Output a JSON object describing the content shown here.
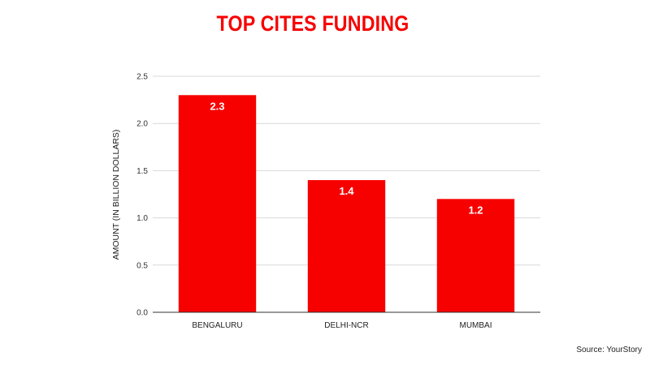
{
  "chart_data": {
    "type": "bar",
    "title": "TOP CITES FUNDING",
    "xlabel": "",
    "ylabel": "AMOUNT (IN BILLION DOLLARS)",
    "categories": [
      "BENGALURU",
      "DELHI-NCR",
      "MUMBAI"
    ],
    "values": [
      2.3,
      1.4,
      1.2
    ],
    "data_labels": [
      "2.3",
      "1.4",
      "1.2"
    ],
    "ylim": [
      0,
      2.5
    ],
    "yticks": [
      "0.0",
      "0.5",
      "1.0",
      "1.5",
      "2.0",
      "2.5"
    ],
    "grid": true,
    "legend": "none",
    "colors": {
      "bar": "#f70000",
      "title": "#f70000",
      "grid": "#d9d9d9"
    }
  },
  "footer": {
    "source": "Source: YourStory"
  }
}
